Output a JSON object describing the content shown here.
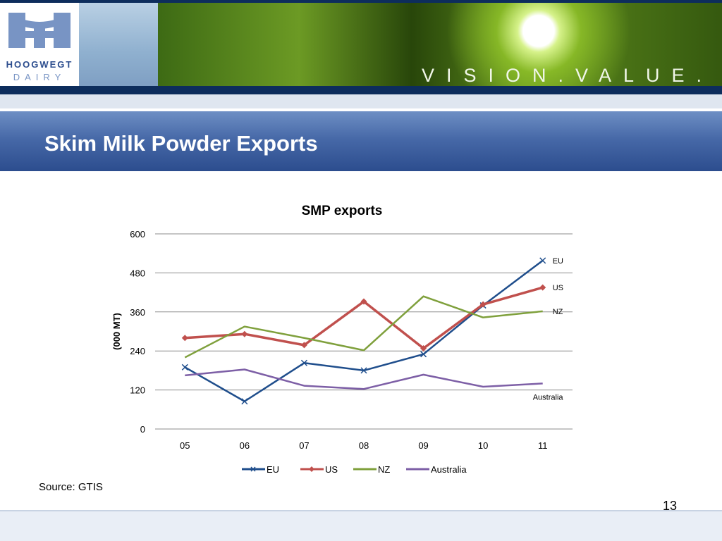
{
  "header": {
    "logo_line1": "HOOGWEGT",
    "logo_line2": "DAIRY",
    "tagline": "VISION.VALUE."
  },
  "slide": {
    "title": "Skim Milk Powder Exports",
    "source": "Source: GTIS",
    "page_number": "13"
  },
  "colors": {
    "EU": "#1f4e8c",
    "US": "#c0504d",
    "NZ": "#7fa03c",
    "Australia": "#7d5fa6",
    "title_band": "#3b5b9b"
  },
  "chart_data": {
    "type": "line",
    "title": "SMP exports",
    "ylabel": "(000 MT)",
    "xlabel": "",
    "ylim": [
      0,
      600
    ],
    "yticks": [
      0,
      120,
      240,
      360,
      480,
      600
    ],
    "grid": true,
    "legend": "bottom",
    "categories": [
      "05",
      "06",
      "07",
      "08",
      "09",
      "10",
      "11"
    ],
    "series": [
      {
        "name": "EU",
        "marker": "x",
        "values": [
          190,
          85,
          203,
          180,
          230,
          380,
          518
        ]
      },
      {
        "name": "US",
        "marker": "diamond",
        "values": [
          280,
          292,
          258,
          392,
          248,
          383,
          435
        ]
      },
      {
        "name": "NZ",
        "marker": "none",
        "values": [
          220,
          315,
          280,
          242,
          408,
          343,
          362
        ]
      },
      {
        "name": "Australia",
        "marker": "none",
        "values": [
          165,
          183,
          133,
          123,
          167,
          130,
          140
        ]
      }
    ]
  }
}
